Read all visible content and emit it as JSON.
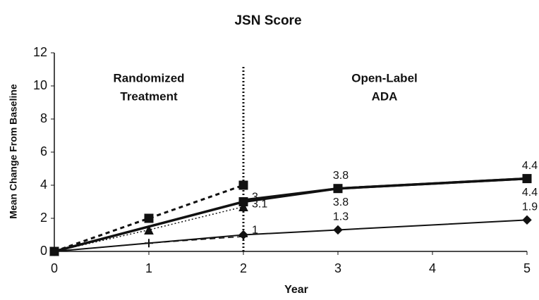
{
  "chart_data": {
    "type": "line",
    "title": "JSN Score",
    "x_label": "Year",
    "y_label": "Mean Change From Baseline",
    "annotations": [
      [
        "Randomized",
        "Treatment"
      ],
      [
        "Open-Label",
        "ADA"
      ]
    ],
    "vline": 2,
    "xlim": [
      0,
      5
    ],
    "xticks": [
      0,
      1,
      2,
      3,
      4,
      5
    ],
    "ylim": [
      0,
      12
    ],
    "yticks": [
      0,
      2,
      4,
      6,
      8,
      10,
      12
    ],
    "series": [
      {
        "color": "#111",
        "marker": "square",
        "dash": "6,5",
        "width": 3,
        "x": [
          0,
          1,
          2
        ],
        "values": [
          0,
          2,
          4
        ]
      },
      {
        "color": "#111",
        "marker": "triangle",
        "dash": "2,3",
        "width": 1.5,
        "x": [
          0,
          1,
          2
        ],
        "values": [
          0,
          1.3,
          2.7
        ]
      },
      {
        "color": "#111",
        "marker": "plus",
        "dash": "8,5",
        "width": 1.5,
        "x": [
          0,
          1,
          2
        ],
        "values": [
          0,
          0.5,
          0.9
        ]
      },
      {
        "color": "#111",
        "marker": "square",
        "dash": "",
        "width": 3.5,
        "x": [
          0,
          2,
          3,
          5
        ],
        "values": [
          0,
          3,
          3.8,
          4.4
        ],
        "value_labels": [
          null,
          "3",
          "3.8",
          "4.4"
        ],
        "label_position": "above"
      },
      {
        "color": "#111",
        "marker": "none",
        "dash": "",
        "width": 3.5,
        "x": [
          2,
          3,
          5
        ],
        "values": [
          3.1,
          3.8,
          4.4
        ],
        "value_labels": [
          "3.1",
          "3.8",
          "4.4"
        ],
        "label_position": "below"
      },
      {
        "color": "#111",
        "marker": "diamond",
        "dash": "",
        "width": 2,
        "x": [
          0,
          2,
          3,
          5
        ],
        "values": [
          0,
          1,
          1.3,
          1.9
        ],
        "value_labels": [
          null,
          "1",
          "1.3",
          "1.9"
        ],
        "label_position": "above"
      }
    ]
  }
}
